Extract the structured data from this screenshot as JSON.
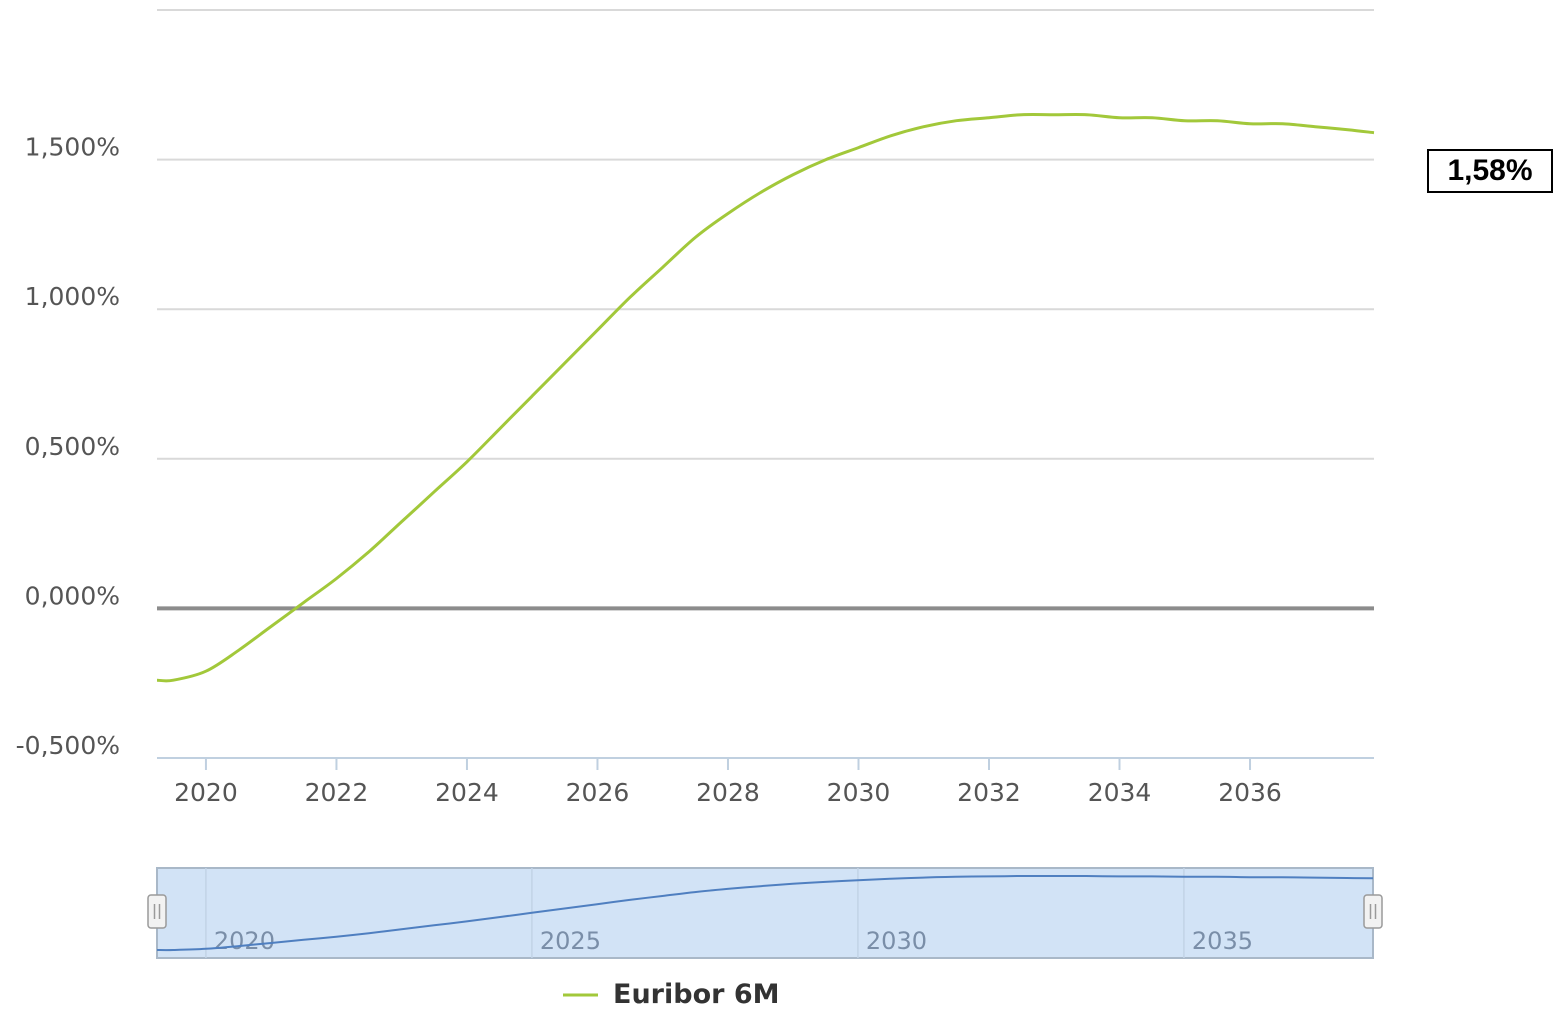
{
  "chart_data": {
    "type": "line",
    "y_ticks": [
      "-0,500%",
      "0,000%",
      "0,500%",
      "1,000%",
      "1,500%"
    ],
    "y_tick_values": [
      -0.5,
      0.0,
      0.5,
      1.0,
      1.5
    ],
    "ylim": [
      -0.5,
      2.0
    ],
    "x_ticks": [
      "2020",
      "2022",
      "2024",
      "2026",
      "2028",
      "2030",
      "2032",
      "2034",
      "2036"
    ],
    "x_tick_values": [
      2020,
      2022,
      2024,
      2026,
      2028,
      2030,
      2032,
      2034,
      2036
    ],
    "xlim": [
      2019.25,
      2037.9
    ],
    "grid": true,
    "series": [
      {
        "name": "Euribor 6M",
        "color": "#a2c83a",
        "x": [
          2019.25,
          2019.5,
          2020.0,
          2020.5,
          2021.0,
          2021.5,
          2022.0,
          2022.5,
          2023.0,
          2023.5,
          2024.0,
          2024.5,
          2025.0,
          2025.5,
          2026.0,
          2026.5,
          2027.0,
          2027.5,
          2028.0,
          2028.5,
          2029.0,
          2029.5,
          2030.0,
          2030.5,
          2031.0,
          2031.5,
          2032.0,
          2032.5,
          2033.0,
          2033.5,
          2034.0,
          2034.5,
          2035.0,
          2035.5,
          2036.0,
          2036.5,
          2037.0,
          2037.5,
          2037.9
        ],
        "values": [
          -0.24,
          -0.24,
          -0.21,
          -0.14,
          -0.06,
          0.02,
          0.1,
          0.19,
          0.29,
          0.39,
          0.49,
          0.6,
          0.71,
          0.82,
          0.93,
          1.04,
          1.14,
          1.24,
          1.32,
          1.39,
          1.45,
          1.5,
          1.54,
          1.58,
          1.61,
          1.63,
          1.64,
          1.65,
          1.65,
          1.65,
          1.64,
          1.64,
          1.63,
          1.63,
          1.62,
          1.62,
          1.61,
          1.6,
          1.59
        ]
      }
    ],
    "navigator": {
      "x_ticks": [
        "2020",
        "2025",
        "2030",
        "2035"
      ],
      "x_tick_values": [
        2020,
        2025,
        2030,
        2035
      ],
      "handle_symbol": "Ⅱ"
    },
    "legend": {
      "label": "Euribor 6M",
      "placement": "bottom-center"
    },
    "current_value": "1,58%"
  }
}
